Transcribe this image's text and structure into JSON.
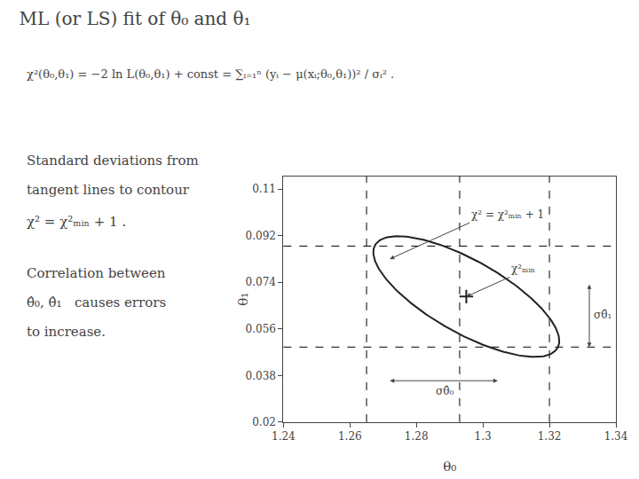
{
  "chart_data": {
    "type": "ellipse",
    "title": "ML (or LS) fit of θ₀ and θ₁",
    "xlabel": "θ₀",
    "ylabel": "θ₁",
    "xlim": [
      1.24,
      1.34
    ],
    "ylim": [
      0.02,
      0.115
    ],
    "xticks": [
      1.24,
      1.26,
      1.28,
      1.3,
      1.32,
      1.34
    ],
    "yticks": [
      0.02,
      0.038,
      0.056,
      0.074,
      0.092,
      0.11
    ],
    "grid": false,
    "center": {
      "x": 1.295,
      "y": 0.0685
    },
    "a": 0.034,
    "b": 0.013,
    "angle": -38,
    "color": "#222222",
    "marker": "plus",
    "line_style": "dashed",
    "hlines": [
      0.088,
      0.049
    ],
    "vlines": [
      1.265,
      1.293,
      1.32
    ],
    "annotations": [
      {
        "text": "χ²(θ₀,θ₁) = −2 ln L(θ₀,θ₁) + const = ∑ᵢ₌₁ⁿ (yᵢ − μ(xᵢ;θ₀,θ₁))² / σᵢ² ."
      },
      {
        "text": "Standard deviations from"
      },
      {
        "text": "tangent lines to contour"
      },
      {
        "text": "χ² = χ²ₘᵢₙ + 1 ."
      },
      {
        "text": "Correlation between"
      },
      {
        "text": "θ̂₀, θ̂₁   causes errors"
      },
      {
        "text": "to increase."
      },
      {
        "text": "χ² = χ²ₘᵢₙ + 1",
        "x": 1.272,
        "y": 0.083,
        "text_x": 1.296,
        "text_y": 0.097
      },
      {
        "text": "χ²ₘᵢₙ",
        "x": 1.295,
        "y": 0.0685,
        "text_x": 1.308,
        "text_y": 0.076
      }
    ],
    "errors": [
      {
        "label": "σθ̂₁",
        "x": 1.332,
        "y_top": 0.074,
        "y_bottom": 0.049
      },
      {
        "label": "σθ̂₀",
        "y": 0.036,
        "x_left": 1.272,
        "x_right": 1.305
      }
    ]
  }
}
